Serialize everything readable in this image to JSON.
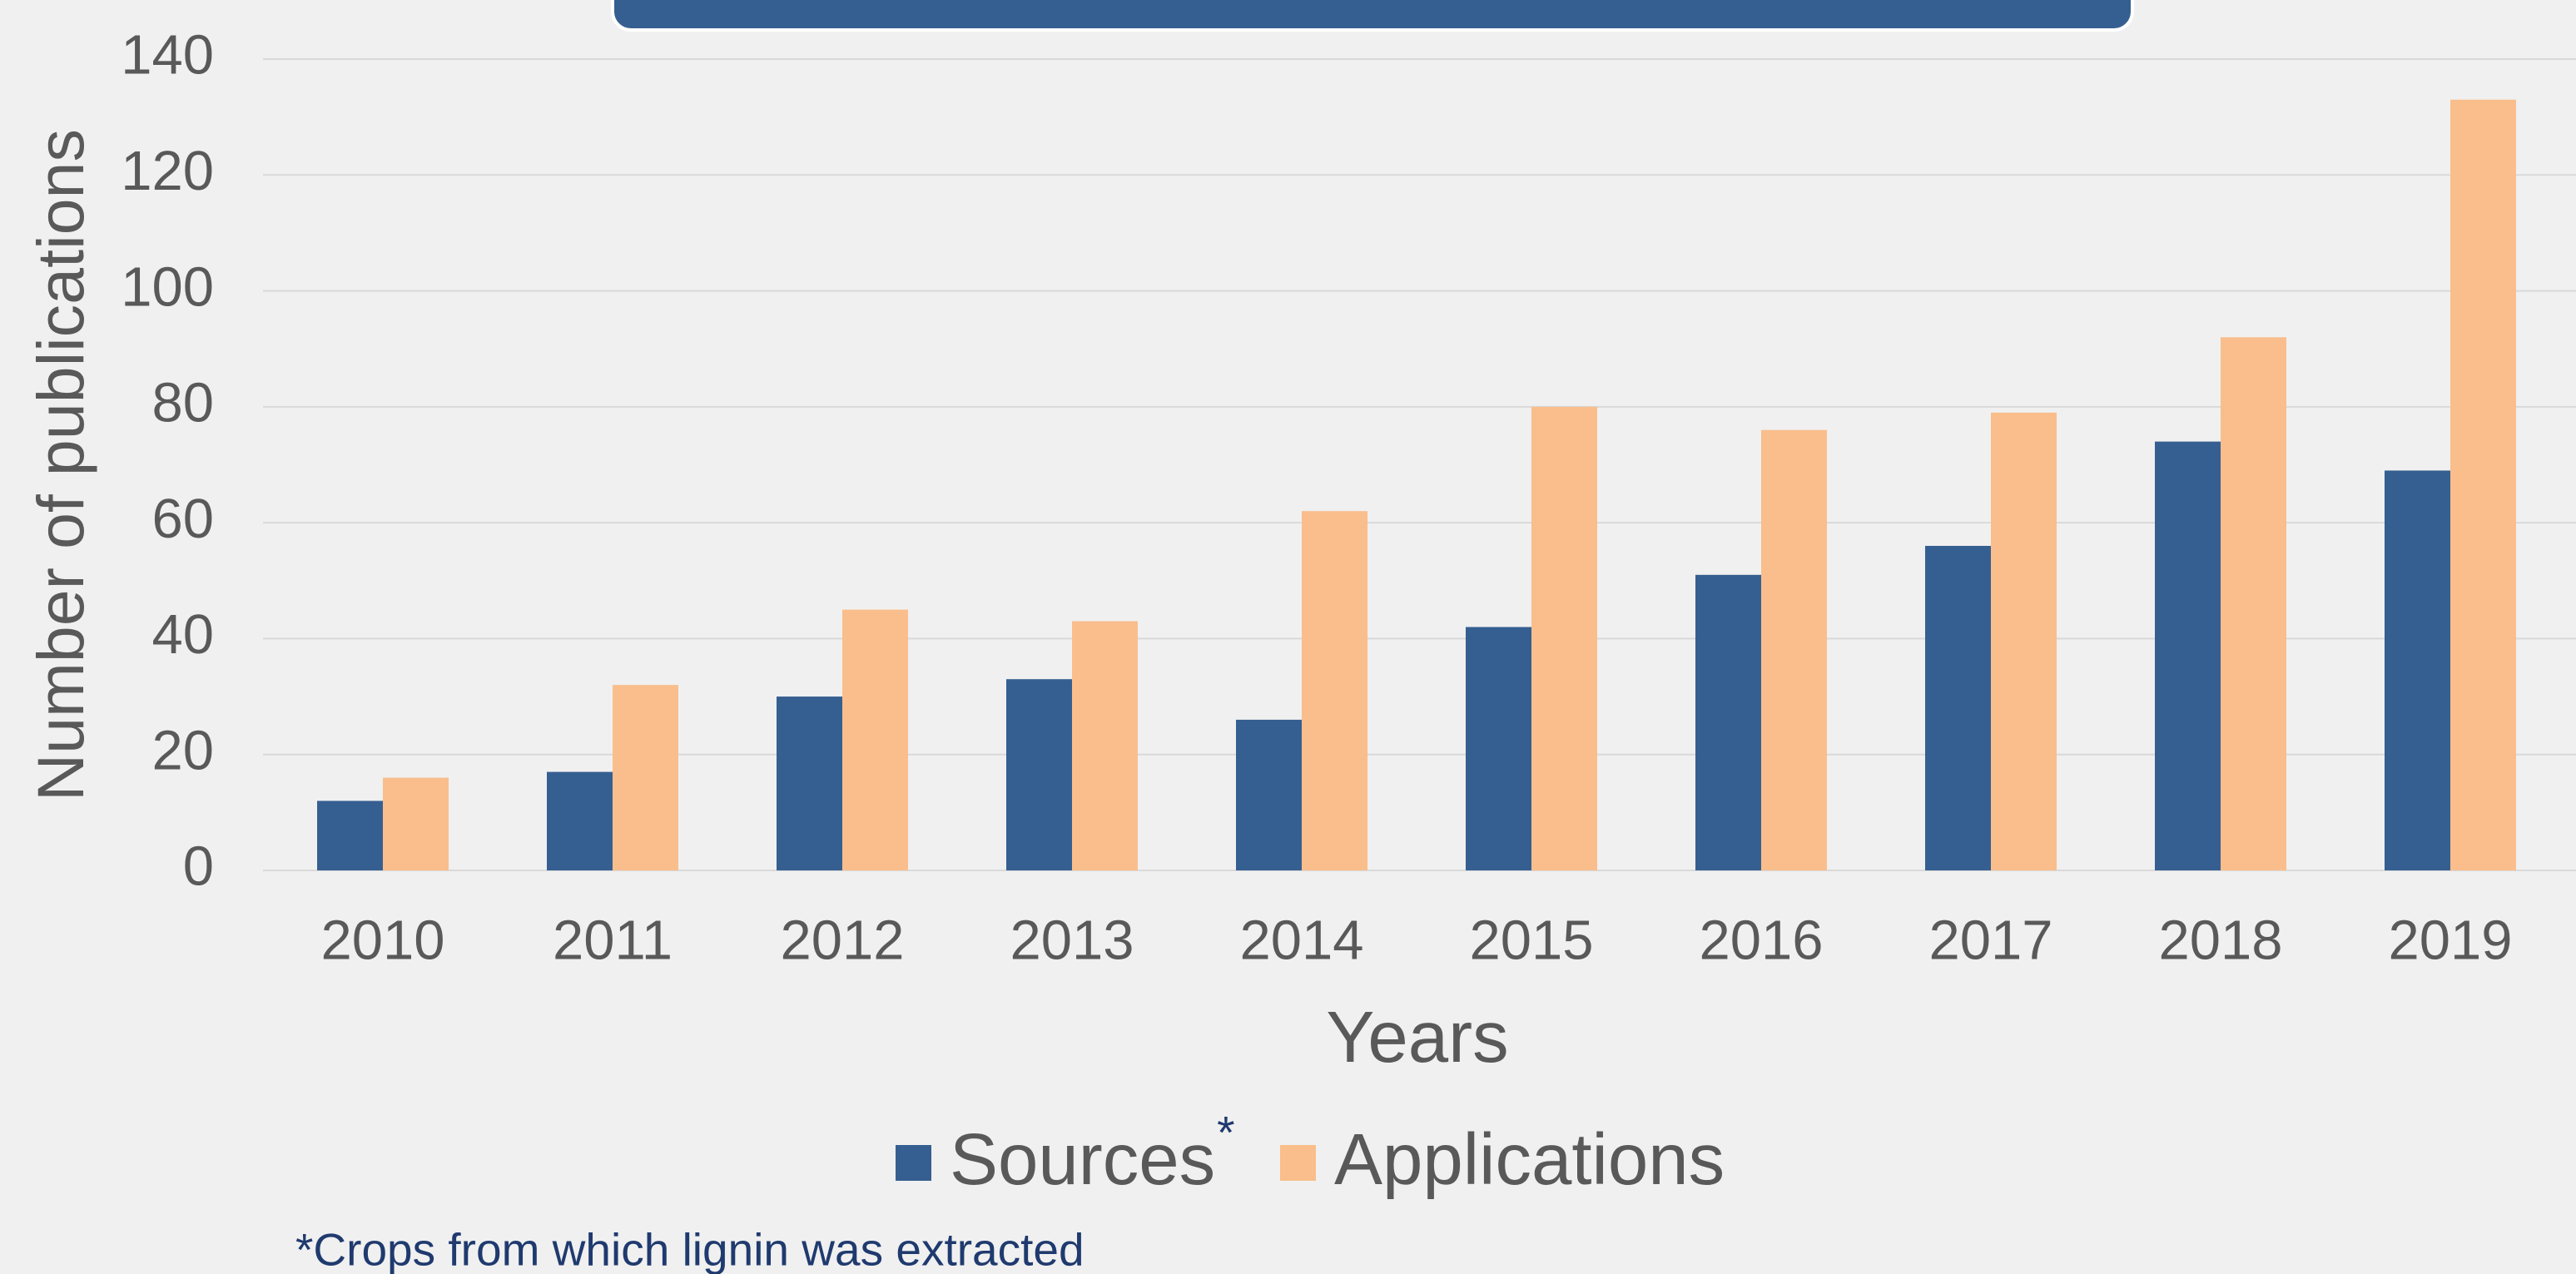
{
  "chart_data": {
    "type": "bar",
    "y_label": "Number of publications",
    "x_label": "Years",
    "categories": [
      "2010",
      "2011",
      "2012",
      "2013",
      "2014",
      "2015",
      "2016",
      "2017",
      "2018",
      "2019"
    ],
    "series": [
      {
        "name": "Sources",
        "color": "#365f91",
        "values": [
          12,
          17,
          30,
          33,
          26,
          42,
          51,
          56,
          74,
          69
        ]
      },
      {
        "name": "Applications",
        "color": "#f9be8c",
        "values": [
          16,
          32,
          45,
          43,
          62,
          80,
          76,
          79,
          92,
          133
        ]
      }
    ],
    "legend_marker": "*",
    "footnote": "*Crops from which lignin was extracted",
    "ylim": [
      0,
      140
    ],
    "yticks": [
      0,
      20,
      40,
      60,
      80,
      100,
      120,
      140
    ],
    "grid": true
  }
}
